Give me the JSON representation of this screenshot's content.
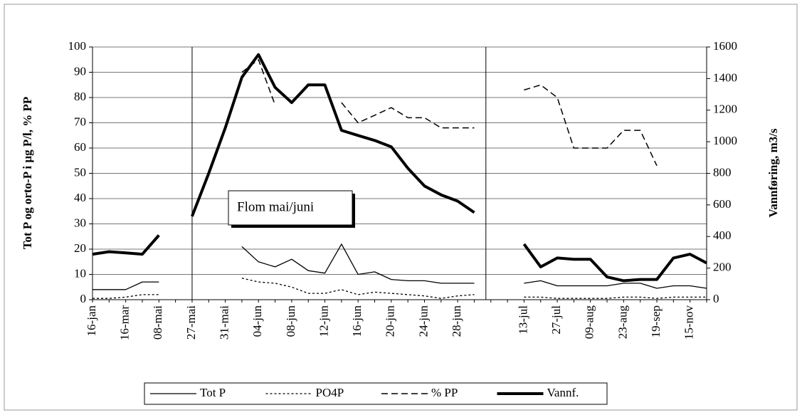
{
  "chart_data": {
    "type": "line",
    "categories": [
      "16-jan",
      null,
      "16-mar",
      null,
      "08-mai",
      null,
      "27-mai",
      null,
      "31-mai",
      null,
      "04-jun",
      null,
      "08-jun",
      null,
      "12-jun",
      null,
      "16-jun",
      null,
      "20-jun",
      null,
      "24-jun",
      null,
      "28-jun",
      null,
      null,
      null,
      "13-jul",
      null,
      "27-jul",
      null,
      "09-aug",
      null,
      "23-aug",
      null,
      "19-sep",
      null,
      "15-nov",
      null
    ],
    "ylabel": "Tot P og orto-P i µg P/l, % PP",
    "y2label": "Vannføring, m3/s",
    "ylim": [
      0,
      100
    ],
    "yticks": [
      0,
      10,
      20,
      30,
      40,
      50,
      60,
      70,
      80,
      90,
      100
    ],
    "y2lim": [
      0,
      1600
    ],
    "y2ticks": [
      0,
      200,
      400,
      600,
      800,
      1000,
      1200,
      1400,
      1600
    ],
    "grid": true,
    "legend": "bottom",
    "annotation": "Flom mai/juni",
    "series": [
      {
        "name": "Tot P",
        "color": "#000000",
        "line_style": "solid",
        "values": [
          4,
          4,
          4,
          7,
          7,
          null,
          null,
          null,
          null,
          21,
          15,
          13,
          16,
          11.5,
          10.5,
          22,
          10,
          11,
          8,
          7.5,
          7.5,
          6.5,
          6.5,
          6.5,
          null,
          null,
          6.5,
          7.5,
          5.5,
          5.5,
          5.5,
          5.5,
          6.5,
          6.5,
          4.5,
          5.5,
          5.5,
          4.5
        ]
      },
      {
        "name": "PO4P",
        "color": "#000000",
        "line_style": "dotted",
        "values": [
          0.5,
          0.5,
          1,
          2,
          2,
          null,
          null,
          null,
          null,
          8.5,
          7,
          6.5,
          5,
          2.5,
          2.5,
          4,
          2,
          3,
          2.5,
          2,
          1.5,
          0.5,
          1.5,
          2,
          null,
          null,
          1,
          1,
          0.5,
          0.5,
          0.5,
          0.5,
          1,
          1,
          0.5,
          1,
          1,
          1
        ]
      },
      {
        "name": "% PP",
        "color": "#000000",
        "line_style": "dashed",
        "values": [
          null,
          null,
          null,
          null,
          null,
          null,
          null,
          null,
          null,
          90,
          95,
          77,
          null,
          null,
          null,
          78,
          70,
          73,
          76,
          72,
          72,
          68,
          68,
          68,
          null,
          null,
          83,
          85,
          80,
          60,
          60,
          60,
          67,
          67,
          53,
          null,
          null,
          null
        ]
      },
      {
        "name": "Vannf.",
        "color": "#000000",
        "line_style": "thick",
        "axis": "y2",
        "values": [
          288,
          304,
          296,
          288,
          408,
          null,
          528,
          800,
          1088,
          1408,
          1552,
          1344,
          1248,
          1360,
          1360,
          1072,
          1040,
          1008,
          968,
          832,
          720,
          664,
          624,
          552,
          null,
          null,
          352,
          208,
          264,
          256,
          256,
          144,
          120,
          128,
          128,
          264,
          288,
          232
        ]
      }
    ]
  }
}
